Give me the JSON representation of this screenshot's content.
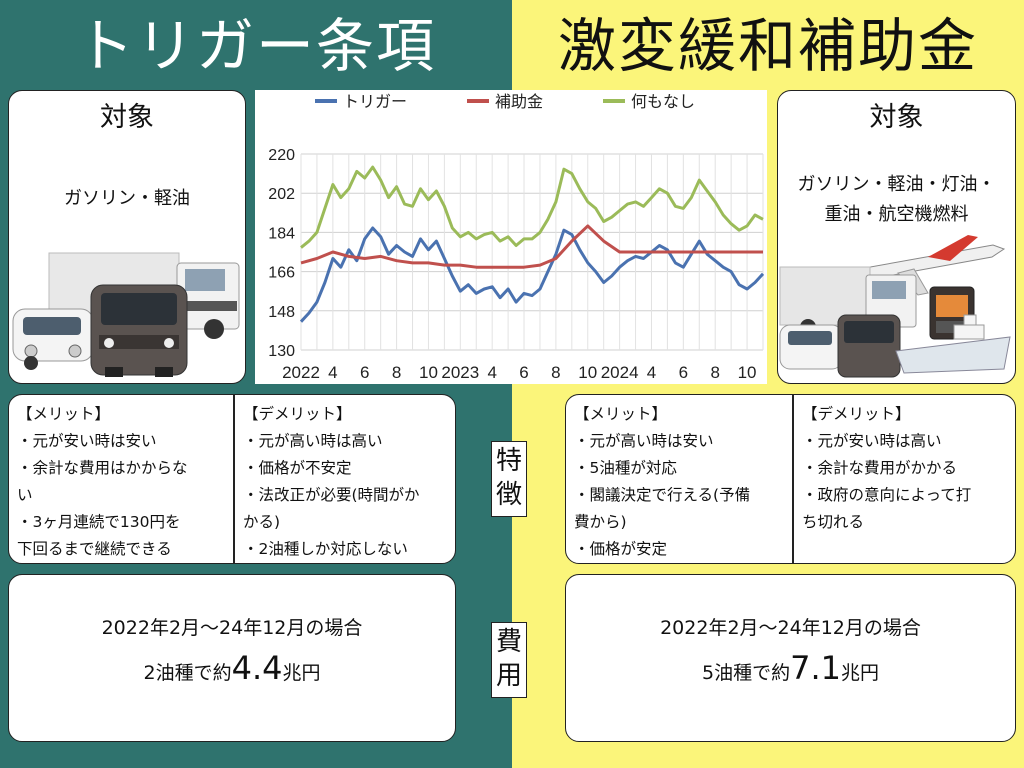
{
  "left": {
    "title": "トリガー条項",
    "target_heading": "対象",
    "target_text": "ガソリン・軽油",
    "merit_heading": "【メリット】",
    "merits": [
      "・元が安い時は安い",
      "・余計な費用はかからな",
      "い",
      "・3ヶ月連続で130円を",
      "下回るまで継続できる"
    ],
    "demerit_heading": "【デメリット】",
    "demerits": [
      "・元が高い時は高い",
      "・価格が不安定",
      "・法改正が必要(時間がか",
      "かる)",
      "・2油種しか対応しない"
    ],
    "cost_period": "2022年2月〜24年12月の場合",
    "cost_prefix": "2油種で約",
    "cost_value": "4.4",
    "cost_suffix": "兆円"
  },
  "right": {
    "title": "激変緩和補助金",
    "target_heading": "対象",
    "target_text_1": "ガソリン・軽油・灯油・",
    "target_text_2": "重油・航空機燃料",
    "merit_heading": "【メリット】",
    "merits": [
      "・元が高い時は安い",
      "・5油種が対応",
      "・閣議決定で行える(予備",
      "費から)",
      "・価格が安定"
    ],
    "demerit_heading": "【デメリット】",
    "demerits": [
      "・元が安い時は高い",
      "・余計な費用がかかる",
      "・政府の意向によって打",
      "ち切れる"
    ],
    "cost_period": "2022年2月〜24年12月の場合",
    "cost_prefix": "5油種で約",
    "cost_value": "7.1",
    "cost_suffix": "兆円"
  },
  "middle": {
    "features_label": [
      "特",
      "徴"
    ],
    "cost_label": [
      "費",
      "用"
    ]
  },
  "colors": {
    "left_bg": "#2f736e",
    "right_bg": "#fbf57a",
    "trigger": "#4a72b0",
    "subsidy": "#c0504d",
    "none": "#9bbb59"
  },
  "chart_data": {
    "type": "line",
    "legend_position": "top",
    "grid": true,
    "ylim": [
      130,
      220
    ],
    "yticks": [
      "130",
      "148",
      "166",
      "184",
      "202",
      "220"
    ],
    "x_tick_labels": [
      "2022",
      "4",
      "6",
      "8",
      "10",
      "2023",
      "4",
      "6",
      "8",
      "10",
      "2024",
      "4",
      "6",
      "8",
      "10"
    ],
    "x_tick_positions": [
      0,
      2,
      4,
      6,
      8,
      10,
      12,
      14,
      16,
      18,
      20,
      22,
      24,
      26,
      28
    ],
    "xlim": [
      0,
      29
    ],
    "series": [
      {
        "name": "トリガー",
        "color": "#4a72b0",
        "x": [
          0,
          0.5,
          1,
          1.5,
          2,
          2.5,
          3,
          3.5,
          4,
          4.5,
          5,
          5.5,
          6,
          6.5,
          7,
          7.5,
          8,
          8.5,
          9,
          9.5,
          10,
          10.5,
          11,
          11.5,
          12,
          12.5,
          13,
          13.5,
          14,
          14.5,
          15,
          15.5,
          16,
          16.5,
          17,
          17.5,
          18,
          18.5,
          19,
          19.5,
          20,
          20.5,
          21,
          21.5,
          22,
          22.5,
          23,
          23.5,
          24,
          24.5,
          25,
          25.5,
          26,
          26.5,
          27,
          27.5,
          28,
          28.5,
          29
        ],
        "y": [
          143,
          147,
          152,
          161,
          172,
          168,
          176,
          171,
          181,
          186,
          182,
          174,
          178,
          175,
          173,
          181,
          176,
          180,
          172,
          164,
          157,
          160,
          156,
          158,
          159,
          154,
          158,
          152,
          156,
          155,
          158,
          166,
          174,
          185,
          183,
          176,
          170,
          166,
          161,
          164,
          168,
          171,
          173,
          172,
          175,
          178,
          176,
          170,
          168,
          174,
          180,
          174,
          171,
          168,
          166,
          160,
          158,
          161,
          165
        ]
      },
      {
        "name": "補助金",
        "color": "#c0504d",
        "x": [
          0,
          1,
          2,
          3,
          4,
          5,
          6,
          7,
          8,
          9,
          10,
          11,
          12,
          13,
          14,
          15,
          16,
          17,
          18,
          19,
          20,
          21,
          22,
          23,
          24,
          25,
          26,
          27,
          28,
          29
        ],
        "y": [
          170,
          172,
          175,
          173,
          172,
          173,
          171,
          170,
          170,
          169,
          169,
          168,
          168,
          168,
          168,
          169,
          172,
          180,
          187,
          180,
          175,
          175,
          175,
          175,
          175,
          175,
          175,
          175,
          175,
          175
        ]
      },
      {
        "name": "何もなし",
        "color": "#9bbb59",
        "x": [
          0,
          0.5,
          1,
          1.5,
          2,
          2.5,
          3,
          3.5,
          4,
          4.5,
          5,
          5.5,
          6,
          6.5,
          7,
          7.5,
          8,
          8.5,
          9,
          9.5,
          10,
          10.5,
          11,
          11.5,
          12,
          12.5,
          13,
          13.5,
          14,
          14.5,
          15,
          15.5,
          16,
          16.5,
          17,
          17.5,
          18,
          18.5,
          19,
          19.5,
          20,
          20.5,
          21,
          21.5,
          22,
          22.5,
          23,
          23.5,
          24,
          24.5,
          25,
          25.5,
          26,
          26.5,
          27,
          27.5,
          28,
          28.5,
          29
        ],
        "y": [
          177,
          180,
          184,
          195,
          206,
          200,
          204,
          212,
          209,
          214,
          208,
          200,
          205,
          197,
          196,
          204,
          199,
          203,
          196,
          186,
          182,
          184,
          181,
          183,
          184,
          180,
          182,
          178,
          181,
          181,
          184,
          190,
          198,
          213,
          211,
          204,
          198,
          195,
          189,
          191,
          194,
          197,
          198,
          196,
          200,
          204,
          202,
          196,
          195,
          200,
          208,
          203,
          198,
          192,
          188,
          185,
          187,
          192,
          190
        ]
      }
    ]
  }
}
